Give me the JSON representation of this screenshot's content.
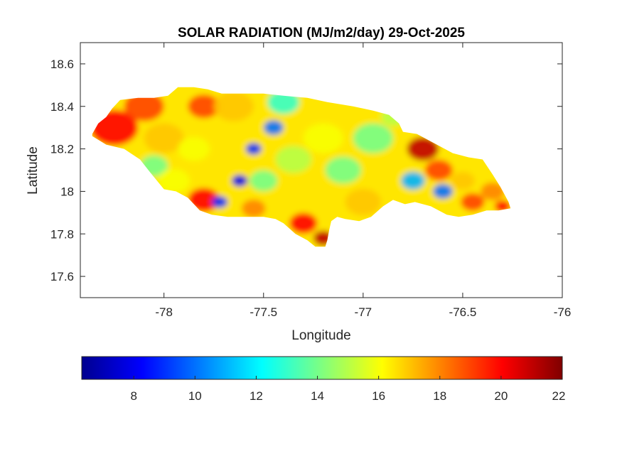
{
  "chart_data": {
    "type": "heatmap",
    "title": "SOLAR RADIATION (MJ/m2/day) 29-Oct-2025",
    "xlabel": "Longitude",
    "ylabel": "Latitude",
    "xlim": [
      -78.42,
      -76.0
    ],
    "ylim": [
      17.5,
      18.7
    ],
    "xticks": [
      -78,
      -77.5,
      -77,
      -76.5,
      -76
    ],
    "xtick_labels": [
      "-78",
      "-77.5",
      "-77",
      "-76.5",
      "-76"
    ],
    "yticks": [
      17.6,
      17.8,
      18.0,
      18.2,
      18.4,
      18.6
    ],
    "ytick_labels": [
      "17.6",
      "17.8",
      "18",
      "18.2",
      "18.4",
      "18.6"
    ],
    "colormap": "jet",
    "clim": [
      6.3,
      22.0
    ],
    "colorbar": {
      "location": "bottom",
      "ticks": [
        8,
        10,
        12,
        14,
        16,
        18,
        20,
        22
      ],
      "tick_labels": [
        "8",
        "10",
        "12",
        "14",
        "16",
        "18",
        "20",
        "22"
      ]
    },
    "grid": false,
    "region_outline_lonlat": [
      [
        -78.36,
        18.27
      ],
      [
        -78.33,
        18.32
      ],
      [
        -78.29,
        18.35
      ],
      [
        -78.26,
        18.39
      ],
      [
        -78.22,
        18.43
      ],
      [
        -78.13,
        18.44
      ],
      [
        -78.05,
        18.44
      ],
      [
        -77.98,
        18.45
      ],
      [
        -77.93,
        18.49
      ],
      [
        -77.85,
        18.49
      ],
      [
        -77.78,
        18.48
      ],
      [
        -77.71,
        18.46
      ],
      [
        -77.62,
        18.46
      ],
      [
        -77.5,
        18.46
      ],
      [
        -77.4,
        18.45
      ],
      [
        -77.28,
        18.44
      ],
      [
        -77.18,
        18.42
      ],
      [
        -77.05,
        18.4
      ],
      [
        -76.95,
        18.38
      ],
      [
        -76.87,
        18.36
      ],
      [
        -76.82,
        18.32
      ],
      [
        -76.8,
        18.28
      ],
      [
        -76.73,
        18.27
      ],
      [
        -76.65,
        18.23
      ],
      [
        -76.55,
        18.18
      ],
      [
        -76.47,
        18.16
      ],
      [
        -76.4,
        18.15
      ],
      [
        -76.35,
        18.08
      ],
      [
        -76.31,
        18.02
      ],
      [
        -76.27,
        17.95
      ],
      [
        -76.26,
        17.92
      ],
      [
        -76.32,
        17.91
      ],
      [
        -76.38,
        17.91
      ],
      [
        -76.45,
        17.89
      ],
      [
        -76.52,
        17.88
      ],
      [
        -76.58,
        17.89
      ],
      [
        -76.66,
        17.93
      ],
      [
        -76.74,
        17.95
      ],
      [
        -76.79,
        17.94
      ],
      [
        -76.85,
        17.96
      ],
      [
        -76.9,
        17.93
      ],
      [
        -76.96,
        17.88
      ],
      [
        -77.02,
        17.86
      ],
      [
        -77.09,
        17.87
      ],
      [
        -77.13,
        17.88
      ],
      [
        -77.16,
        17.86
      ],
      [
        -77.17,
        17.82
      ],
      [
        -77.18,
        17.77
      ],
      [
        -77.19,
        17.74
      ],
      [
        -77.24,
        17.74
      ],
      [
        -77.28,
        17.77
      ],
      [
        -77.34,
        17.8
      ],
      [
        -77.4,
        17.85
      ],
      [
        -77.44,
        17.87
      ],
      [
        -77.5,
        17.88
      ],
      [
        -77.58,
        17.88
      ],
      [
        -77.68,
        17.88
      ],
      [
        -77.76,
        17.89
      ],
      [
        -77.82,
        17.91
      ],
      [
        -77.88,
        17.97
      ],
      [
        -77.94,
        18.0
      ],
      [
        -78.0,
        18.01
      ],
      [
        -78.07,
        18.09
      ],
      [
        -78.12,
        18.15
      ],
      [
        -78.2,
        18.2
      ],
      [
        -78.29,
        18.22
      ],
      [
        -78.36,
        18.26
      ]
    ],
    "value_zones": [
      {
        "area": "western tip",
        "level": "high",
        "approx": 20
      },
      {
        "area": "south-west coast",
        "level": "very high",
        "approx": 21
      },
      {
        "area": "north-central interior",
        "level": "moderate",
        "approx": 15
      },
      {
        "area": "central diagonal streaks",
        "level": "low",
        "approx": 8
      },
      {
        "area": "south-central coast",
        "level": "high",
        "approx": 20
      },
      {
        "area": "east-central",
        "level": "moderate",
        "approx": 14
      },
      {
        "area": "eastern upland",
        "level": "very high",
        "approx": 21
      },
      {
        "area": "eastern valley",
        "level": "low",
        "approx": 10
      }
    ]
  }
}
